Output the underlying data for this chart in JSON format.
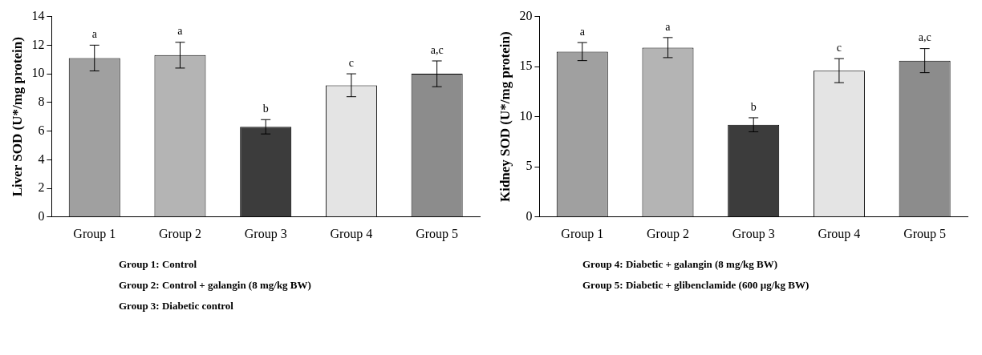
{
  "chart_data": [
    {
      "type": "bar",
      "ylabel": "Liver SOD (U*/mg protein)",
      "categories": [
        "Group 1",
        "Group 2",
        "Group 3",
        "Group 4",
        "Group 5"
      ],
      "values": [
        11.1,
        11.3,
        6.3,
        9.2,
        10.0
      ],
      "errors": [
        0.9,
        0.9,
        0.5,
        0.8,
        0.9
      ],
      "colors": [
        "#a0a0a0",
        "#b4b4b4",
        "#3c3c3c",
        "#e4e4e4",
        "#8c8c8c"
      ],
      "ylim": [
        0,
        14
      ],
      "yticks": [
        0,
        2,
        4,
        6,
        8,
        10,
        12,
        14
      ],
      "grid": false,
      "legend": false,
      "annotations": [
        {
          "text": "a",
          "x": "Group 1",
          "y": 12.0
        },
        {
          "text": "a",
          "x": "Group 2",
          "y": 12.2
        },
        {
          "text": "b",
          "x": "Group 3",
          "y": 6.8
        },
        {
          "text": "c",
          "x": "Group 4",
          "y": 10.0
        },
        {
          "text": "a,c",
          "x": "Group 5",
          "y": 10.9
        },
        "Group 1: Control",
        "Group 2: Control + galangin (8 mg/kg BW)",
        "Group 3: Diabetic control"
      ]
    },
    {
      "type": "bar",
      "ylabel": "Kidney SOD (U*/mg protein)",
      "categories": [
        "Group 1",
        "Group 2",
        "Group 3",
        "Group 4",
        "Group 5"
      ],
      "values": [
        16.5,
        16.9,
        9.2,
        14.6,
        15.6
      ],
      "errors": [
        0.9,
        1.0,
        0.7,
        1.2,
        1.2
      ],
      "colors": [
        "#a0a0a0",
        "#b4b4b4",
        "#3c3c3c",
        "#e4e4e4",
        "#8c8c8c"
      ],
      "ylim": [
        0,
        20
      ],
      "yticks": [
        0,
        5,
        10,
        15,
        20
      ],
      "grid": false,
      "legend": false,
      "annotations": [
        {
          "text": "a",
          "x": "Group 1",
          "y": 17.4
        },
        {
          "text": "a",
          "x": "Group 2",
          "y": 17.9
        },
        {
          "text": "b",
          "x": "Group 3",
          "y": 9.9
        },
        {
          "text": "c",
          "x": "Group 4",
          "y": 15.8
        },
        {
          "text": "a,c",
          "x": "Group 5",
          "y": 16.8
        },
        "Group 4: Diabetic + galangin (8 mg/kg BW)",
        "Group 5: Diabetic + glibenclamide  (600 µg/kg BW)"
      ]
    }
  ]
}
